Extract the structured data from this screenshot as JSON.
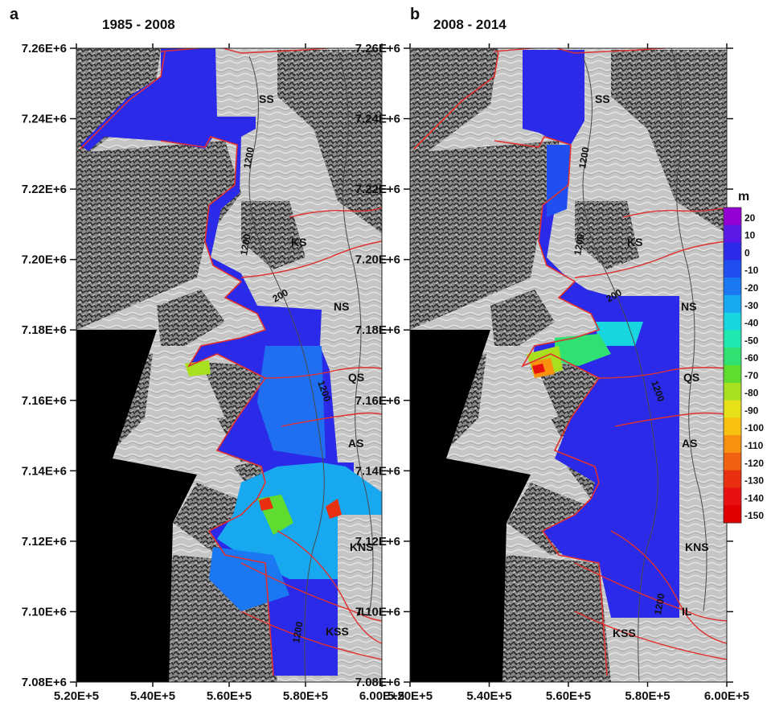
{
  "panels": [
    {
      "letter": "a",
      "period": "1985 - 2008",
      "y_ticks": [
        "7.26E+6",
        "7.24E+6",
        "7.22E+6",
        "7.20E+6",
        "7.18E+6",
        "7.16E+6",
        "7.14E+6",
        "7.12E+6",
        "7.10E+6",
        "7.08E+6"
      ],
      "x_ticks": [
        "5.20E+5",
        "5.40E+5",
        "5.60E+5",
        "5.80E+5",
        "6.00E+5"
      ],
      "glacier_labels": [
        "SS",
        "KS",
        "NS",
        "QS",
        "AS",
        "KNS",
        "IL",
        "KSS"
      ],
      "contour_labels": [
        "1200",
        "1200",
        "1200",
        "200",
        "1200"
      ]
    },
    {
      "letter": "b",
      "period": "2008 - 2014",
      "y_ticks": [
        "7.26E+6",
        "7.24E+6",
        "7.22E+6",
        "7.20E+6",
        "7.18E+6",
        "7.16E+6",
        "7.14E+6",
        "7.12E+6",
        "7.10E+6",
        "7.08E+6"
      ],
      "x_ticks": [
        "5.20E+5",
        "5.40E+5",
        "5.60E+5",
        "5.80E+5",
        "6.00E+5"
      ],
      "glacier_labels": [
        "SS",
        "KS",
        "NS",
        "QS",
        "AS",
        "KNS",
        "IL",
        "KSS"
      ],
      "contour_labels": [
        "1200",
        "1200",
        "200",
        "1200",
        "1200"
      ]
    }
  ],
  "colorbar": {
    "unit": "m",
    "ticks": [
      "20",
      "10",
      "0",
      "-10",
      "-20",
      "-30",
      "-40",
      "-50",
      "-60",
      "-70",
      "-80",
      "-90",
      "-100",
      "-110",
      "-120",
      "-130",
      "-140",
      "-150"
    ],
    "colors": [
      "#9400d3",
      "#5a19e6",
      "#2a2ae8",
      "#1f4ff0",
      "#1a78f2",
      "#18a8f0",
      "#18d6e0",
      "#20e8b0",
      "#30e070",
      "#60dc30",
      "#a8e020",
      "#e8e018",
      "#f8c010",
      "#f89010",
      "#f06010",
      "#e83010",
      "#e81010",
      "#e00000"
    ]
  },
  "colors": {
    "coastline": "#e03030",
    "contour": "#4a4a4a",
    "no_data": "#000000",
    "terrain": "#a8a8a8"
  }
}
